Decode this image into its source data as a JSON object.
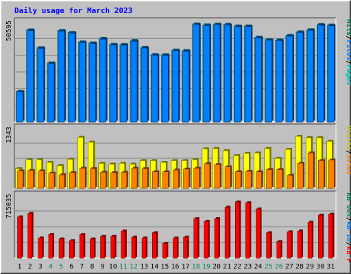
{
  "chart_data": {
    "type": "bar",
    "title": "Daily usage for March 2023",
    "categories": [
      "1",
      "2",
      "3",
      "4",
      "5",
      "6",
      "7",
      "8",
      "9",
      "10",
      "11",
      "12",
      "13",
      "14",
      "15",
      "16",
      "17",
      "18",
      "19",
      "20",
      "21",
      "22",
      "23",
      "24",
      "25",
      "26",
      "27",
      "28",
      "29",
      "30",
      "31"
    ],
    "weekend_days": [
      "4",
      "5",
      "11",
      "12",
      "18",
      "19",
      "25",
      "26"
    ],
    "colors": {
      "hits": "#00c0ff",
      "files": "#0080ff",
      "pages": "#00c0c0",
      "visits": "#ffff00",
      "sites": "#ff8000",
      "kbytes": "#ff0000",
      "weekday_label": "#000000",
      "weekend_label": "#00805c",
      "panel_bg": "#c0c0c0",
      "title": "#0000ff"
    },
    "panels": [
      {
        "id": "hits-files-pages",
        "max_label": "50595",
        "max_value": 50595,
        "legend": [
          {
            "label": "Pages",
            "color": "#00c0c0"
          },
          {
            "sep": "/"
          },
          {
            "label": "Files",
            "color": "#0080ff"
          },
          {
            "sep": "/"
          },
          {
            "label": "Hits",
            "color": "#00805c"
          }
        ],
        "series": [
          {
            "name": "Hits",
            "color": "#00c0ff",
            "values": [
              15500,
              46600,
              37600,
              29900,
              46300,
              45300,
              40500,
              40000,
              42300,
              39300,
              39200,
              41200,
              37800,
              34100,
              34000,
              36400,
              36100,
              49600,
              49100,
              49500,
              49400,
              48600,
              48600,
              42900,
              41700,
              41500,
              43800,
              45600,
              46700,
              49300,
              49000
            ]
          },
          {
            "name": "Files",
            "color": "#0080ff",
            "values": [
              15200,
              46200,
              37200,
              29500,
              45900,
              44900,
              40100,
              39600,
              41900,
              38900,
              38800,
              40800,
              37400,
              33700,
              33600,
              36000,
              35700,
              49200,
              48700,
              49100,
              49000,
              48200,
              48200,
              42500,
              41300,
              41100,
              43400,
              45200,
              46300,
              48900,
              48600
            ]
          }
        ]
      },
      {
        "id": "visits-sites",
        "max_label": "1343",
        "max_value": 1343,
        "legend": [
          {
            "label": "Sites",
            "color": "#ff8000"
          },
          {
            "sep": "/"
          },
          {
            "label": "Visits",
            "color": "#c0c000"
          }
        ],
        "series": [
          {
            "name": "Visits",
            "color": "#ffff00",
            "values": [
              440,
              640,
              640,
              580,
              510,
              650,
              1140,
              1030,
              560,
              540,
              560,
              540,
              620,
              620,
              580,
              620,
              620,
              640,
              880,
              890,
              840,
              730,
              780,
              790,
              890,
              670,
              870,
              1160,
              1130,
              1130,
              1050
            ]
          },
          {
            "name": "Sites",
            "color": "#ff8000",
            "values": [
              390,
              400,
              390,
              340,
              300,
              350,
              450,
              440,
              360,
              350,
              360,
              450,
              440,
              370,
              370,
              410,
              430,
              450,
              550,
              530,
              480,
              370,
              380,
              370,
              420,
              420,
              290,
              560,
              790,
              620,
              630
            ]
          }
        ]
      },
      {
        "id": "kbytes",
        "max_label": "715035",
        "max_value": 715035,
        "legend": [
          {
            "label": "kB F",
            "color": "#ff0000"
          },
          {
            "sep": "/"
          },
          {
            "label": "kB In",
            "color": "#0080ff"
          },
          {
            "sep": "/"
          },
          {
            "label": "kB Out",
            "color": "#00805c"
          }
        ],
        "series": [
          {
            "name": "kB F",
            "color": "#ff0000",
            "values": [
              470000,
              510000,
              230000,
              270000,
              220000,
              200000,
              270000,
              220000,
              250000,
              250000,
              310000,
              240000,
              230000,
              290000,
              170000,
              230000,
              240000,
              450000,
              420000,
              450000,
              580000,
              640000,
              630000,
              560000,
              290000,
              190000,
              300000,
              310000,
              410000,
              490000,
              500000
            ]
          }
        ]
      }
    ]
  }
}
